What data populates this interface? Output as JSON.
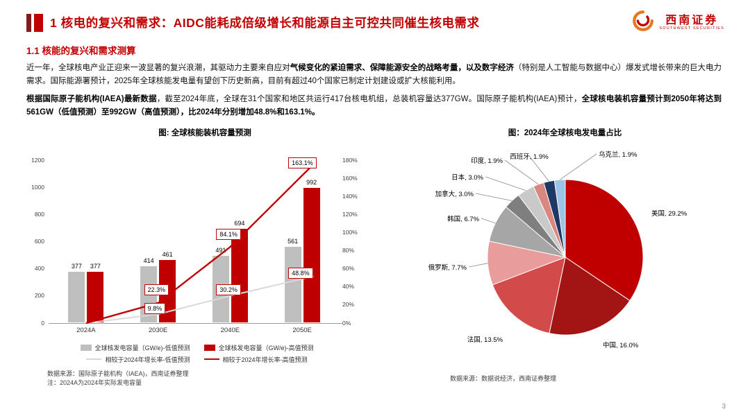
{
  "header": {
    "title": "1 核电的复兴和需求：AIDC能耗成倍级增长和能源自主可控共同催生核电需求",
    "logo_cn": "西南证券",
    "logo_en": "SOUTHWEST SECURITIES"
  },
  "section_title": "1.1 核能的复兴和需求测算",
  "paragraphs": {
    "p1": [
      {
        "text": "近一年，全球核电产业正迎来一波显著的复兴浪潮，其驱动力主要来自应对",
        "bold": false
      },
      {
        "text": "气候变化的紧迫需求、保障能源安全的战略考量，以及数字经济",
        "bold": true
      },
      {
        "text": "（特别是人工智能与数据中心）爆发式增长带来的巨大电力需求。国际能源署预计，2025年全球核能发电量有望创下历史新高，目前有超过40个国家已制定计划建设或扩大核能利用。",
        "bold": false
      }
    ],
    "p2": [
      {
        "text": "根据国际原子能机构(IAEA)最新数据",
        "bold": true
      },
      {
        "text": "，截至2024年底，全球在31个国家和地区共运行417台核电机组，总装机容量达377GW。国际原子能机构(IAEA)预计，",
        "bold": false
      },
      {
        "text": "全球核电装机容量预计到2050年将达到561GW（低值预测）至992GW（高值预测），比2024年分别增加48.8%和163.1%。",
        "bold": true
      }
    ]
  },
  "chart_data": [
    {
      "type": "bar",
      "title": "图: 全球核能装机容量预测",
      "categories": [
        "2024A",
        "2030E",
        "2040E",
        "2050E"
      ],
      "series": [
        {
          "name": "全球核发电容量（GW/e)-低值预测",
          "kind": "bar",
          "color": "#BFBFBF",
          "values": [
            377,
            414,
            491,
            561
          ]
        },
        {
          "name": "全球核发电容量（GW/e)-高值预测",
          "kind": "bar",
          "color": "#C00000",
          "values": [
            377,
            461,
            694,
            992
          ]
        },
        {
          "name": "相较于2024年增长率-低值预测",
          "kind": "line",
          "color": "#D9D9D9",
          "values": [
            0,
            9.8,
            30.2,
            48.8
          ],
          "labels": [
            "",
            "9.8%",
            "30.2%",
            "48.8%"
          ]
        },
        {
          "name": "相较于2024年增长率-高值预测",
          "kind": "line",
          "color": "#C00000",
          "values": [
            0,
            22.3,
            84.1,
            163.1
          ],
          "labels": [
            "",
            "22.3%",
            "84.1%",
            "163.1%"
          ]
        }
      ],
      "left_axis": {
        "min": 0,
        "max": 1200,
        "step": 200
      },
      "right_axis": {
        "min": 0,
        "max": 180,
        "step": 20,
        "suffix": "%"
      },
      "legend_position": "bottom",
      "grid": false
    },
    {
      "type": "pie",
      "title": "图：2024年全球核电发电量占比",
      "slices": [
        {
          "name": "美国",
          "value": 29.2,
          "color": "#C00000"
        },
        {
          "name": "中国",
          "value": 16.0,
          "color": "#A31515"
        },
        {
          "name": "法国",
          "value": 13.5,
          "color": "#D24A4A"
        },
        {
          "name": "俄罗斯",
          "value": 7.7,
          "color": "#E89C9C"
        },
        {
          "name": "韩国",
          "value": 6.7,
          "color": "#A6A6A6"
        },
        {
          "name": "加拿大",
          "value": 3.0,
          "color": "#7F7F7F"
        },
        {
          "name": "日本",
          "value": 3.0,
          "color": "#C9C9C9"
        },
        {
          "name": "印度",
          "value": 1.9,
          "color": "#D98880"
        },
        {
          "name": "西班牙",
          "value": 1.9,
          "color": "#1F3864"
        },
        {
          "name": "乌克兰",
          "value": 1.9,
          "color": "#9DC3E6"
        }
      ]
    }
  ],
  "sources": {
    "left": "数据来源：国际原子能机构（IAEA)，西南证券整理",
    "left_note": "注：2024A为2024年实际发电容量",
    "right": "数据来源：数据说经济，西南证券整理"
  },
  "page_number": "3",
  "colors": {
    "accent": "#C00000",
    "bar_low": "#BFBFBF",
    "bar_high": "#C00000",
    "line_low": "#D9D9D9",
    "line_high": "#C00000"
  }
}
